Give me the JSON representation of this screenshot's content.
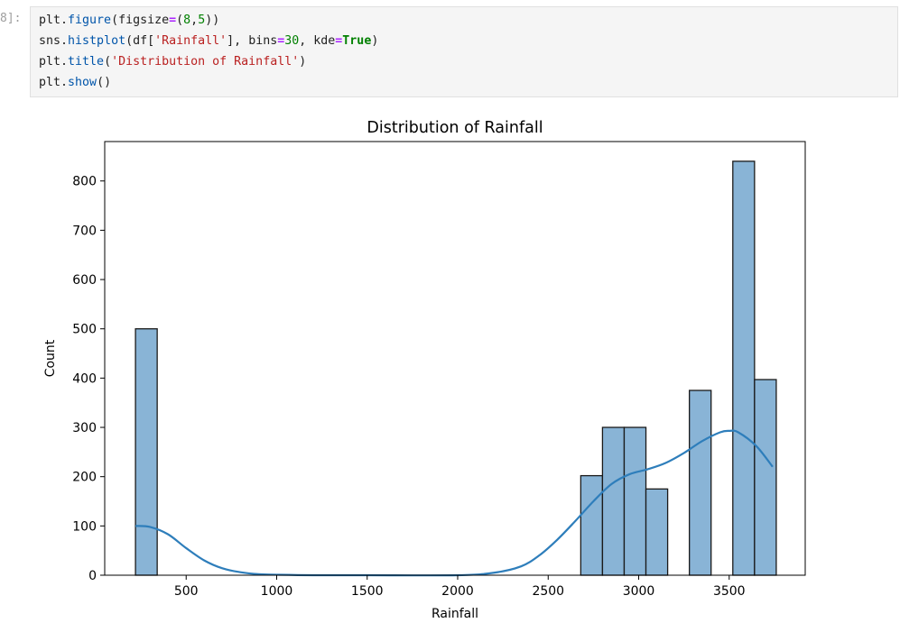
{
  "cell": {
    "prompt": "8]:",
    "lines": [
      [
        {
          "t": "plt.",
          "c": ""
        },
        {
          "t": "figure",
          "c": "fn"
        },
        {
          "t": "(figsize",
          "c": ""
        },
        {
          "t": "=",
          "c": "op"
        },
        {
          "t": "(",
          "c": ""
        },
        {
          "t": "8",
          "c": "num"
        },
        {
          "t": ",",
          "c": ""
        },
        {
          "t": "5",
          "c": "num"
        },
        {
          "t": "))",
          "c": ""
        }
      ],
      [
        {
          "t": "sns.",
          "c": ""
        },
        {
          "t": "histplot",
          "c": "fn"
        },
        {
          "t": "(df[",
          "c": ""
        },
        {
          "t": "'Rainfall'",
          "c": "str"
        },
        {
          "t": "], bins",
          "c": ""
        },
        {
          "t": "=",
          "c": "op"
        },
        {
          "t": "30",
          "c": "num"
        },
        {
          "t": ", kde",
          "c": ""
        },
        {
          "t": "=",
          "c": "op"
        },
        {
          "t": "True",
          "c": "kw"
        },
        {
          "t": ")",
          "c": ""
        }
      ],
      [
        {
          "t": "plt.",
          "c": ""
        },
        {
          "t": "title",
          "c": "fn"
        },
        {
          "t": "(",
          "c": ""
        },
        {
          "t": "'Distribution of Rainfall'",
          "c": "str"
        },
        {
          "t": ")",
          "c": ""
        }
      ],
      [
        {
          "t": "plt.",
          "c": ""
        },
        {
          "t": "show",
          "c": "fn"
        },
        {
          "t": "()",
          "c": ""
        }
      ]
    ]
  },
  "chart_data": {
    "type": "bar",
    "title": "Distribution of Rainfall",
    "xlabel": "Rainfall",
    "ylabel": "Count",
    "xlim": [
      50,
      3920
    ],
    "ylim": [
      0,
      880
    ],
    "xticks": [
      500,
      1000,
      1500,
      2000,
      2500,
      3000,
      3500
    ],
    "yticks": [
      0,
      100,
      200,
      300,
      400,
      500,
      600,
      700,
      800
    ],
    "bin_width": 120,
    "bins": [
      {
        "x0": 220,
        "x1": 340,
        "count": 500
      },
      {
        "x0": 2680,
        "x1": 2800,
        "count": 202
      },
      {
        "x0": 2800,
        "x1": 2920,
        "count": 300
      },
      {
        "x0": 2920,
        "x1": 3040,
        "count": 300
      },
      {
        "x0": 3040,
        "x1": 3160,
        "count": 175
      },
      {
        "x0": 3280,
        "x1": 3400,
        "count": 375
      },
      {
        "x0": 3520,
        "x1": 3640,
        "count": 840
      },
      {
        "x0": 3640,
        "x1": 3760,
        "count": 397
      }
    ],
    "kde": {
      "x": [
        220,
        300,
        400,
        500,
        600,
        700,
        800,
        900,
        1000,
        1200,
        1500,
        2000,
        2200,
        2350,
        2450,
        2550,
        2650,
        2750,
        2850,
        2950,
        3050,
        3150,
        3250,
        3350,
        3450,
        3500,
        3550,
        3650,
        3740
      ],
      "y": [
        100,
        98,
        83,
        55,
        30,
        14,
        6,
        2,
        1,
        0,
        0,
        0,
        5,
        18,
        40,
        72,
        110,
        150,
        185,
        205,
        215,
        228,
        248,
        272,
        290,
        293,
        290,
        262,
        220
      ]
    },
    "colors": {
      "bar_fill": "#89b4d6",
      "bar_edge": "#1a1a1a",
      "kde_line": "#2e7ebb"
    }
  }
}
